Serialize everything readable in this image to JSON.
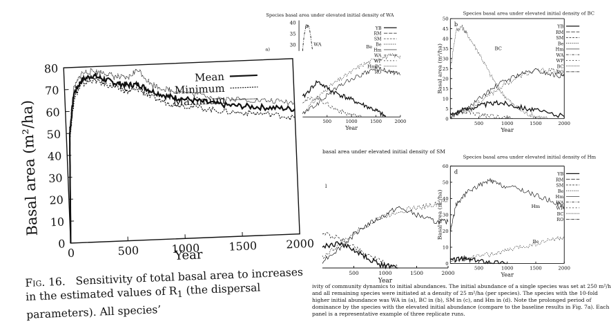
{
  "fig16": {
    "chart_data": {
      "type": "line",
      "xlabel": "Year",
      "ylabel": "Basal area (m²/ha)",
      "xlim": [
        0,
        2000
      ],
      "ylim": [
        0,
        80
      ],
      "x_ticks": [
        "0",
        "500",
        "1000",
        "1500",
        "2000"
      ],
      "y_ticks": [
        "0",
        "10",
        "20",
        "30",
        "40",
        "50",
        "60",
        "70",
        "80"
      ],
      "legend": {
        "position": "top-right",
        "entries": [
          "Mean",
          "Minimum",
          "Maximum"
        ]
      },
      "series": [
        {
          "name": "Mean",
          "x": [
            0,
            30,
            80,
            150,
            250,
            350,
            450,
            550,
            650,
            750,
            900,
            1000,
            1200,
            1400,
            1600,
            1800,
            2000
          ],
          "y": [
            0,
            50,
            68,
            74,
            76,
            74,
            72,
            71,
            71,
            68,
            65,
            64,
            62,
            60,
            59,
            58,
            57
          ]
        },
        {
          "name": "Minimum",
          "x": [
            0,
            30,
            80,
            150,
            250,
            350,
            450,
            550,
            650,
            750,
            900,
            1000,
            1200,
            1400,
            1600,
            1800,
            2000
          ],
          "y": [
            0,
            48,
            66,
            72,
            74,
            72,
            70,
            68,
            69,
            65,
            62,
            61,
            59,
            57,
            56,
            55,
            53
          ]
        },
        {
          "name": "Maximum",
          "x": [
            0,
            30,
            80,
            150,
            250,
            350,
            450,
            550,
            650,
            750,
            900,
            1000,
            1200,
            1400,
            1600,
            1800,
            2000
          ],
          "y": [
            0,
            52,
            70,
            77,
            78,
            77,
            75,
            74,
            78,
            71,
            68,
            67,
            65,
            63,
            62,
            61,
            60
          ]
        }
      ]
    },
    "caption_label": "Fig. 16.",
    "caption_text": "Sensitivity of total basal area to increases in the estimated values of R",
    "caption_sub": "1",
    "caption_tail": " (the dispersal parameters). All species’"
  },
  "fig7": {
    "legend_entries": [
      "YB",
      "RM",
      "SM",
      "Be",
      "Hm",
      "WA",
      "WP",
      "BC",
      "RO"
    ],
    "xlabel": "Year",
    "ylabel": "Basal area (m²/ha)",
    "panels": [
      {
        "letter": "a",
        "title": "Species basal area under elevated initial density of WA",
        "inset_ticks": [
          "40",
          "35",
          "30"
        ],
        "inset_ylabel": "a)",
        "inset_label": "WA",
        "chart_data": {
          "type": "line",
          "xlim": [
            0,
            2000
          ],
          "x_ticks": [
            "500",
            "1000",
            "1500",
            "2000"
          ],
          "annotations": [
            "Be",
            "Hm"
          ],
          "series": [
            {
              "name": "Be",
              "x": [
                0,
                300,
                600,
                900,
                1200,
                1500,
                1800,
                2000
              ],
              "y": [
                1,
                6,
                10,
                13,
                16,
                18,
                19,
                19
              ]
            },
            {
              "name": "Hm",
              "x": [
                0,
                300,
                600,
                900,
                1200,
                1500,
                1800,
                2000
              ],
              "y": [
                1,
                4,
                8,
                11,
                13,
                15,
                14,
                13
              ]
            },
            {
              "name": "YB",
              "x": [
                0,
                300,
                600,
                900,
                1200,
                1500,
                1700
              ],
              "y": [
                6,
                11,
                8,
                6,
                4,
                2,
                0
              ]
            },
            {
              "name": "SM",
              "x": [
                0,
                300,
                600,
                900,
                1200
              ],
              "y": [
                5,
                6,
                3,
                1,
                0
              ]
            }
          ]
        }
      },
      {
        "letter": "b",
        "title": "Species basal area under elevated initial density of BC",
        "ylabel": "Basal area (m²/ha)",
        "y_ticks": [
          "0",
          "5",
          "10",
          "15",
          "20",
          "25",
          "30",
          "35",
          "40",
          "45",
          "50"
        ],
        "chart_data": {
          "type": "line",
          "xlim": [
            0,
            2000
          ],
          "ylim": [
            0,
            50
          ],
          "x_ticks": [
            "500",
            "1000",
            "1500",
            "2000"
          ],
          "annotations": [
            "BC"
          ],
          "series": [
            {
              "name": "BC",
              "x": [
                0,
                100,
                200,
                300,
                500,
                700,
                900,
                1100,
                1300,
                1500,
                1700
              ],
              "y": [
                25,
                44,
                46,
                42,
                33,
                22,
                13,
                7,
                3,
                1,
                0
              ]
            },
            {
              "name": "Be",
              "x": [
                0,
                300,
                600,
                900,
                1200,
                1500,
                1800,
                2000
              ],
              "y": [
                1,
                4,
                10,
                16,
                21,
                24,
                24,
                22
              ]
            },
            {
              "name": "Hm",
              "x": [
                0,
                300,
                600,
                900,
                1200,
                1500,
                1800,
                2000
              ],
              "y": [
                1,
                5,
                12,
                18,
                22,
                24,
                22,
                21
              ]
            },
            {
              "name": "YB",
              "x": [
                0,
                300,
                600,
                900,
                1200,
                1500,
                2000
              ],
              "y": [
                2,
                5,
                7,
                8,
                6,
                4,
                1
              ]
            },
            {
              "name": "SM",
              "x": [
                0,
                200,
                500,
                800,
                1100
              ],
              "y": [
                2,
                4,
                2,
                1,
                0
              ]
            }
          ]
        }
      },
      {
        "letter": "",
        "title": "basal area under elevated initial density of SM",
        "inset_ylabel": "l",
        "chart_data": {
          "type": "line",
          "xlim": [
            0,
            2000
          ],
          "x_ticks": [
            "500",
            "1000",
            "1500",
            "2000"
          ],
          "series": [
            {
              "name": "Be",
              "x": [
                0,
                300,
                600,
                900,
                1200,
                1500,
                1800,
                2000
              ],
              "y": [
                3,
                7,
                11,
                14,
                16,
                17,
                18,
                19
              ]
            },
            {
              "name": "Hm",
              "x": [
                0,
                300,
                600,
                900,
                1200,
                1500,
                1800,
                2000
              ],
              "y": [
                2,
                6,
                11,
                14,
                17,
                15,
                13,
                13
              ]
            },
            {
              "name": "SM",
              "x": [
                0,
                300,
                600,
                900,
                1200
              ],
              "y": [
                10,
                8,
                5,
                2,
                0
              ]
            },
            {
              "name": "YB",
              "x": [
                0,
                300,
                600,
                900,
                1200
              ],
              "y": [
                6,
                7,
                4,
                1,
                0
              ]
            }
          ]
        }
      },
      {
        "letter": "d",
        "title": "Species basal area under elevated initial density of Hm",
        "ylabel": "Basal area (m²/ha)",
        "y_ticks": [
          "0",
          "10",
          "20",
          "30",
          "40",
          "50",
          "60"
        ],
        "chart_data": {
          "type": "line",
          "xlim": [
            0,
            2000
          ],
          "ylim": [
            0,
            60
          ],
          "x_ticks": [
            "500",
            "1000",
            "1500",
            "2000"
          ],
          "annotations": [
            "Hm",
            "Be"
          ],
          "series": [
            {
              "name": "Hm",
              "x": [
                0,
                100,
                300,
                500,
                700,
                900,
                1200,
                1500,
                1800,
                2000
              ],
              "y": [
                20,
                36,
                44,
                48,
                51,
                48,
                46,
                42,
                38,
                35
              ]
            },
            {
              "name": "Be",
              "x": [
                0,
                300,
                600,
                900,
                1200,
                1500,
                1800,
                2000
              ],
              "y": [
                1,
                3,
                5,
                7,
                10,
                12,
                15,
                16
              ]
            },
            {
              "name": "YB",
              "x": [
                0,
                200,
                400,
                700,
                1000
              ],
              "y": [
                2,
                3,
                2,
                1,
                0
              ]
            }
          ]
        }
      }
    ],
    "caption_text": "ivity of community dynamics to initial abundances. The initial abundance of a single species was set at 250 m²/ha, and all remaining species were initiated at a density of 25 m²/ha (per species). The species with the 10-fold higher initial abundance was WA in (a), BC in (b), SM in (c), and Hm in (d). Note the prolonged period of dominance by the species with the elevated initial abundance (compare to the baseline results in Fig. 7a). Each panel is a representative example of three replicate runs."
  }
}
